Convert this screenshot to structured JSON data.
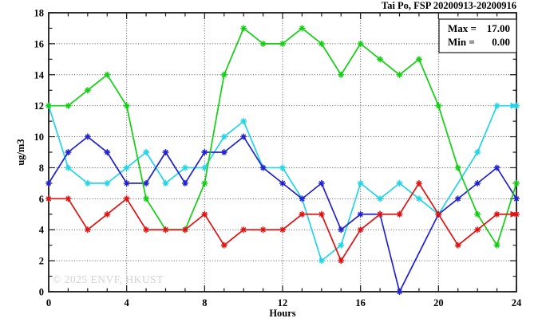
{
  "window": {
    "background": "#ffffff"
  },
  "chart_data": {
    "type": "line",
    "title": "Tai Po, FSP 20200913-20200916",
    "xlabel": "Hours",
    "ylabel": "ug/m3",
    "xlim": [
      0,
      24
    ],
    "ylim": [
      0,
      18
    ],
    "x_ticks": [
      0,
      4,
      8,
      12,
      16,
      20,
      24
    ],
    "y_ticks": [
      0,
      2,
      4,
      6,
      8,
      10,
      12,
      14,
      16,
      18
    ],
    "x_minor_step": 1,
    "y_minor_step": 1,
    "grid": "dotted",
    "grid_color": "#555555",
    "hours": [
      0,
      1,
      2,
      3,
      4,
      5,
      6,
      7,
      8,
      9,
      10,
      11,
      12,
      13,
      14,
      15,
      16,
      17,
      18,
      19,
      20,
      21,
      22,
      23,
      24
    ],
    "series": [
      {
        "name": "cyan-series",
        "color": "#22d5e6",
        "values": [
          12,
          8,
          7,
          7,
          8,
          9,
          7,
          8,
          8,
          10,
          11,
          8,
          8,
          6,
          2,
          3,
          7,
          6,
          7,
          6,
          5,
          null,
          9,
          12,
          12
        ],
        "end_arrow": true
      },
      {
        "name": "blue-series",
        "color": "#2222cf",
        "values": [
          7,
          9,
          10,
          9,
          7,
          7,
          9,
          7,
          9,
          9,
          10,
          8,
          7,
          6,
          7,
          4,
          5,
          5,
          0,
          null,
          5,
          6,
          7,
          8,
          6
        ],
        "end_arrow": false
      },
      {
        "name": "green-series",
        "color": "#12cf12",
        "values": [
          12,
          12,
          13,
          14,
          12,
          6,
          4,
          4,
          7,
          14,
          17,
          16,
          16,
          17,
          16,
          14,
          16,
          15,
          14,
          15,
          12,
          8,
          5,
          3,
          7
        ],
        "end_arrow": false
      },
      {
        "name": "red-series",
        "color": "#e01212",
        "values": [
          6,
          6,
          4,
          5,
          6,
          4,
          4,
          4,
          5,
          3,
          4,
          4,
          4,
          5,
          5,
          2,
          4,
          5,
          5,
          7,
          5,
          3,
          4,
          5,
          5
        ],
        "end_arrow": true
      }
    ],
    "legend": {
      "position": "top-right",
      "max_label": "Max =",
      "max_value": "17.00",
      "min_label": "Min =",
      "min_value": "0.00"
    },
    "watermark": "© 2025 ENVF, HKUST"
  }
}
